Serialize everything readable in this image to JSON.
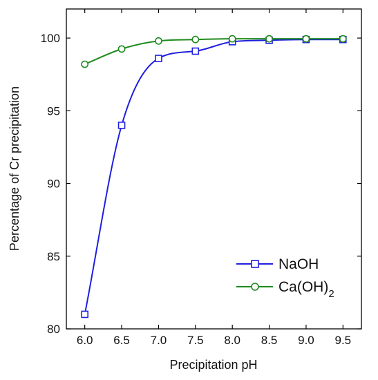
{
  "chart_data": {
    "type": "scatter",
    "xlabel": "Precipitation pH",
    "ylabel": "Percentage of Cr precipitation",
    "xlim": [
      5.75,
      9.75
    ],
    "ylim": [
      80,
      102
    ],
    "x_ticks": [
      "6.0",
      "6.5",
      "7.0",
      "7.5",
      "8.0",
      "8.5",
      "9.0",
      "9.5"
    ],
    "y_ticks": [
      "80",
      "85",
      "90",
      "95",
      "100"
    ],
    "x": [
      6.0,
      6.5,
      7.0,
      7.5,
      8.0,
      8.5,
      9.0,
      9.5
    ],
    "series": [
      {
        "name": "NaOH",
        "marker": "square",
        "color": "#1f1fe0",
        "values": [
          81.0,
          94.0,
          98.6,
          99.1,
          99.75,
          99.85,
          99.9,
          99.9
        ],
        "fit_curve": true
      },
      {
        "name": "Ca(OH)2",
        "name_main": "Ca(OH)",
        "name_sub": "2",
        "marker": "circle",
        "color": "#1e8a1e",
        "values": [
          98.2,
          99.25,
          99.8,
          99.9,
          99.95,
          99.95,
          99.95,
          99.95
        ],
        "fit_curve": true
      }
    ],
    "legend_position": "bottom-right",
    "grid": false
  }
}
